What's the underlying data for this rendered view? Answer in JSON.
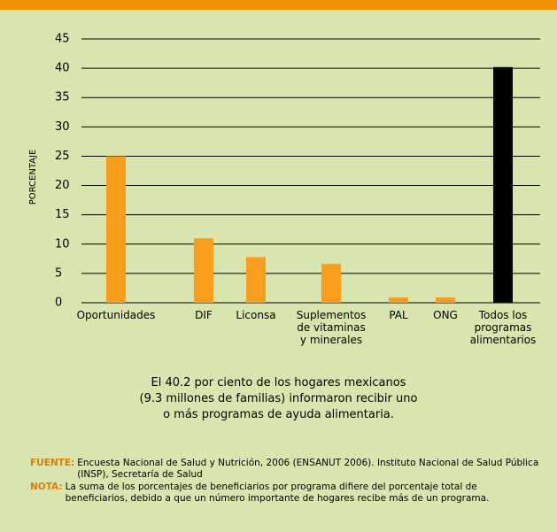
{
  "chart_data": {
    "type": "bar",
    "y_label": "PORCENTAJE",
    "categories": [
      "Oportunidades",
      "DIF",
      "Liconsa",
      "Suplementos de vitaminas y minerales",
      "PAL",
      "ONG",
      "Todos los programas alimentarios"
    ],
    "values": [
      25,
      11,
      7.8,
      6.6,
      0.9,
      0.9,
      40.2
    ],
    "colors": [
      "#f99d1c",
      "#f99d1c",
      "#f99d1c",
      "#f99d1c",
      "#f99d1c",
      "#f99d1c",
      "#000000"
    ],
    "ylim": [
      0,
      45
    ],
    "yticks": [
      0,
      5,
      10,
      15,
      20,
      25,
      30,
      35,
      40,
      45
    ],
    "grid": true
  },
  "caption": [
    "El 40.2 por ciento de los hogares mexicanos",
    "(9.3 millones de familias) informaron recibir uno",
    "o más programas de ayuda alimentaria."
  ],
  "notes": [
    {
      "label": "FUENTE:",
      "text": "Encuesta Nacional de Salud y Nutrición, 2006 (ENSANUT 2006). Instituto Nacional de Salud Pública (INSP), Secretaría de Salud"
    },
    {
      "label": "NOTA:",
      "text": "La suma de los porcentajes de beneficiarios por programa difiere del porcentaje total de beneficiarios, debido a que un número importante de hogares recibe más de un programa."
    }
  ]
}
